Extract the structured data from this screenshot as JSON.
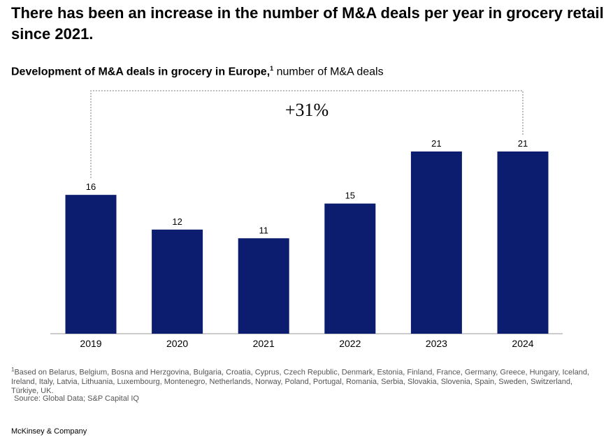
{
  "headline": "There has been an increase in the number of M&A deals per year in grocery retail since 2021.",
  "subtitle": {
    "bold": "Development of M&A deals in grocery in Europe,",
    "footnote_ref": "1",
    "unit": " number of M&A deals"
  },
  "chart_data": {
    "type": "bar",
    "categories": [
      "2019",
      "2020",
      "2021",
      "2022",
      "2023",
      "2024"
    ],
    "values": [
      16,
      12,
      11,
      15,
      21,
      21
    ],
    "ylim": [
      0,
      21
    ],
    "bar_color": "#0c1d6f",
    "annotation": {
      "label": "+31%",
      "from": "2019",
      "to": "2024"
    },
    "title": "Development of M&A deals in grocery in Europe",
    "ylabel": "number of M&A deals"
  },
  "footnote": {
    "marker": "1",
    "text": "Based on Belarus, Belgium, Bosna and Herzgovina, Bulgaria, Croatia, Cyprus, Czech Republic, Denmark, Estonia, Finland, France, Germany, Greece, Hungary, Iceland, Ireland, Italy, Latvia, Lithuania, Luxembourg, Montenegro, Netherlands, Norway, Poland, Portugal, Romania, Serbia, Slovakia, Slovenia, Spain, Sweden, Switzerland, Türkiye, UK."
  },
  "source": "Source: Global Data; S&P Capital IQ",
  "brand": "McKinsey & Company"
}
